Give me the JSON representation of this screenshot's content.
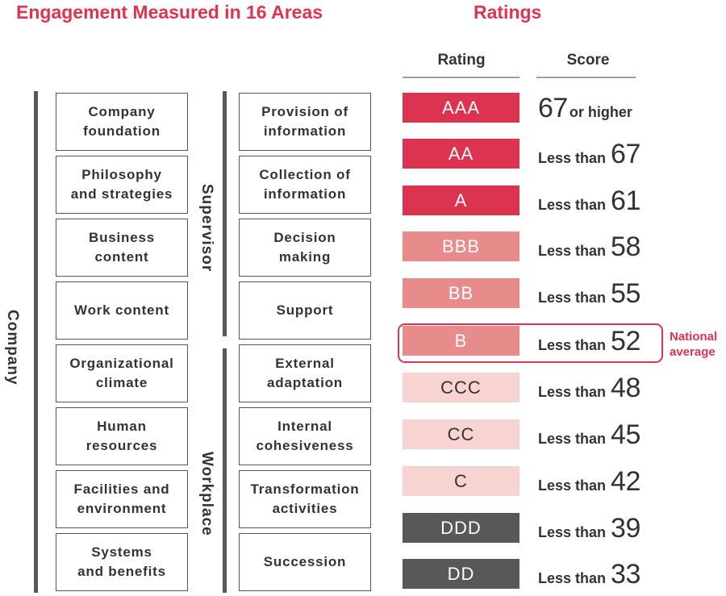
{
  "titles": {
    "left": "Engagement Measured in 16 Areas",
    "right": "Ratings"
  },
  "groups": {
    "company": "Company",
    "supervisor": "Supervisor",
    "workplace": "Workplace"
  },
  "company_areas": [
    {
      "line1": "Company",
      "line2": "foundation"
    },
    {
      "line1": "Philosophy",
      "line2": "and strategies"
    },
    {
      "line1": "Business",
      "line2": "content"
    },
    {
      "line1": "Work content",
      "line2": ""
    },
    {
      "line1": "Organizational",
      "line2": "climate"
    },
    {
      "line1": "Human",
      "line2": "resources"
    },
    {
      "line1": "Facilities and",
      "line2": "environment"
    },
    {
      "line1": "Systems",
      "line2": "and benefits"
    }
  ],
  "supervisor_areas": [
    {
      "line1": "Provision of",
      "line2": "information"
    },
    {
      "line1": "Collection of",
      "line2": "information"
    },
    {
      "line1": "Decision",
      "line2": "making"
    },
    {
      "line1": "Support",
      "line2": ""
    }
  ],
  "workplace_areas": [
    {
      "line1": "External",
      "line2": "adaptation"
    },
    {
      "line1": "Internal",
      "line2": "cohesiveness"
    },
    {
      "line1": "Transformation",
      "line2": "activities"
    },
    {
      "line1": "Succession",
      "line2": ""
    }
  ],
  "ratings_table": {
    "headers": {
      "rating": "Rating",
      "score": "Score"
    },
    "rows": [
      {
        "rating": "AAA",
        "prefix": "",
        "score": "67",
        "suffix": "or higher",
        "tier": "high"
      },
      {
        "rating": "AA",
        "prefix": "Less than",
        "score": "67",
        "suffix": "",
        "tier": "high"
      },
      {
        "rating": "A",
        "prefix": "Less than",
        "score": "61",
        "suffix": "",
        "tier": "high"
      },
      {
        "rating": "BBB",
        "prefix": "Less than",
        "score": "58",
        "suffix": "",
        "tier": "mid"
      },
      {
        "rating": "BB",
        "prefix": "Less than",
        "score": "55",
        "suffix": "",
        "tier": "mid"
      },
      {
        "rating": "B",
        "prefix": "Less than",
        "score": "52",
        "suffix": "",
        "tier": "mid"
      },
      {
        "rating": "CCC",
        "prefix": "Less than",
        "score": "48",
        "suffix": "",
        "tier": "low"
      },
      {
        "rating": "CC",
        "prefix": "Less than",
        "score": "45",
        "suffix": "",
        "tier": "low"
      },
      {
        "rating": "C",
        "prefix": "Less than",
        "score": "42",
        "suffix": "",
        "tier": "low"
      },
      {
        "rating": "DDD",
        "prefix": "Less than",
        "score": "39",
        "suffix": "",
        "tier": "bottom"
      },
      {
        "rating": "DD",
        "prefix": "Less than",
        "score": "33",
        "suffix": "",
        "tier": "bottom"
      }
    ],
    "national_average": {
      "line1": "National",
      "line2": "average",
      "rating": "B"
    }
  },
  "colors": {
    "accent": "#e0334f",
    "high": "#dc3350",
    "mid": "#e88c8b",
    "low": "#f7d3d1",
    "bottom": "#595757",
    "text_on_dark": "#ffffff",
    "text_on_light": "#333333"
  }
}
